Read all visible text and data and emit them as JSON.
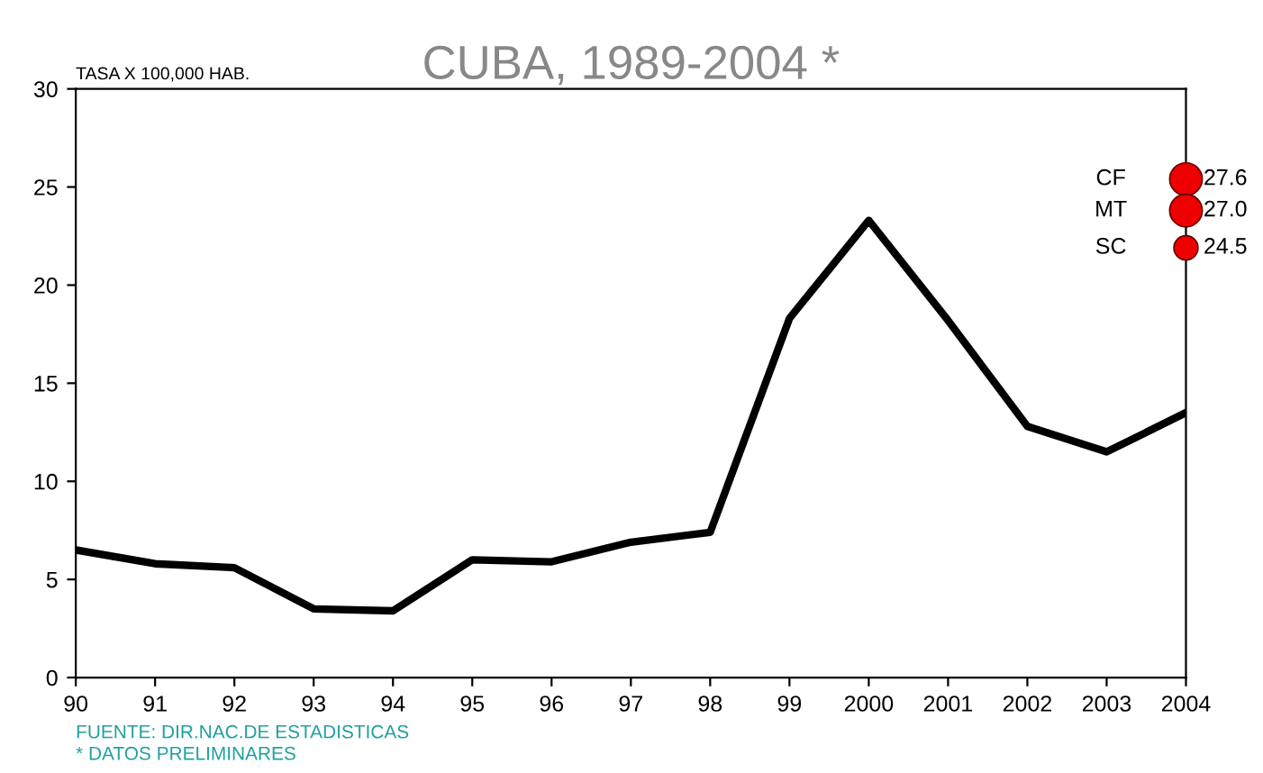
{
  "chart_data": {
    "type": "line",
    "title": "CUBA, 1989-2004 *",
    "ylabel": "TASA X 100,000 HAB.",
    "categories": [
      "90",
      "91",
      "92",
      "93",
      "94",
      "95",
      "96",
      "97",
      "98",
      "99",
      "2000",
      "2001",
      "2002",
      "2003",
      "2004"
    ],
    "series": [
      {
        "color": "#000000",
        "values": [
          6.5,
          5.8,
          5.6,
          3.5,
          3.4,
          6.0,
          5.9,
          6.9,
          7.4,
          18.3,
          23.3,
          18.2,
          12.8,
          11.5,
          13.5
        ]
      },
      {
        "type": "bubble",
        "color": "#ee0000",
        "values": [
          null,
          null,
          null,
          null,
          null,
          null,
          null,
          null,
          null,
          null,
          null,
          null,
          null,
          null,
          25.4
        ],
        "sizes": [
          null,
          null,
          null,
          null,
          null,
          null,
          null,
          null,
          null,
          null,
          null,
          null,
          null,
          null,
          1
        ]
      },
      {
        "type": "bubble",
        "color": "#ee0000",
        "values": [
          null,
          null,
          null,
          null,
          null,
          null,
          null,
          null,
          null,
          null,
          null,
          null,
          null,
          null,
          23.8
        ],
        "sizes": [
          null,
          null,
          null,
          null,
          null,
          null,
          null,
          null,
          null,
          null,
          null,
          null,
          null,
          null,
          1
        ]
      },
      {
        "type": "bubble",
        "color": "#ee0000",
        "values": [
          null,
          null,
          null,
          null,
          null,
          null,
          null,
          null,
          null,
          null,
          null,
          null,
          null,
          null,
          21.9
        ],
        "sizes": [
          null,
          null,
          null,
          null,
          null,
          null,
          null,
          null,
          null,
          null,
          null,
          null,
          null,
          null,
          0.55
        ]
      }
    ],
    "ylim": [
      0,
      30
    ],
    "yticks": [
      0,
      5,
      10,
      15,
      20,
      25,
      30
    ],
    "annotations": [
      {
        "text": "CF",
        "x": "2004",
        "y": 25.4
      },
      {
        "text": "MT",
        "x": "2004",
        "y": 23.8
      },
      {
        "text": "SC",
        "x": "2004",
        "y": 21.9
      },
      {
        "text": "27.6",
        "x": "2004",
        "y": 25.4
      },
      {
        "text": "27.0",
        "x": "2004",
        "y": 23.8
      },
      {
        "text": "24.5",
        "x": "2004",
        "y": 21.9
      },
      "FUENTE: DIR.NAC.DE ESTADISTICAS",
      "* DATOS PRELIMINARES"
    ],
    "grid": false,
    "legend": false
  }
}
